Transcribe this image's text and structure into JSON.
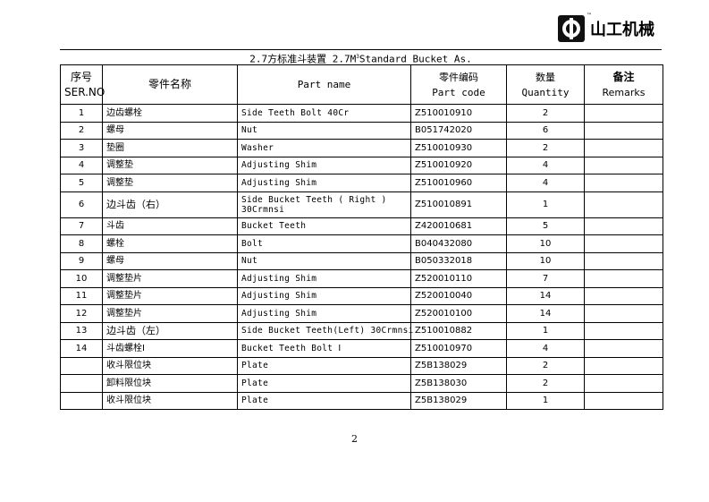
{
  "logo": {
    "brand": "山工机械",
    "tm": "™"
  },
  "title": {
    "prefix": "2.7方标准斗装置  2.7M",
    "sup": "3",
    "suffix": "Standard Bucket As."
  },
  "headers": {
    "ser_cn": "序号",
    "ser_en": "SER.NO",
    "name_cn": "零件名称",
    "part_name": "Part name",
    "code_cn": "零件编码",
    "code_en": "Part code",
    "qty_cn": "数量",
    "qty_en": "Quantity",
    "remarks_cn": "备注",
    "remarks_en": "Remarks"
  },
  "rows": [
    {
      "no": "1",
      "cn": "边齿螺栓",
      "en": "Side Teeth Bolt   40Cr",
      "code": "Z510010910",
      "qty": "2",
      "remarks": ""
    },
    {
      "no": "2",
      "cn": "螺母",
      "en": "Nut",
      "code": "B051742020",
      "qty": "6",
      "remarks": ""
    },
    {
      "no": "3",
      "cn": "垫圈",
      "en": "Washer",
      "code": "Z510010930",
      "qty": "2",
      "remarks": ""
    },
    {
      "no": "4",
      "cn": "调整垫",
      "en": "Adjusting Shim",
      "code": "Z510010920",
      "qty": "4",
      "remarks": ""
    },
    {
      "no": "5",
      "cn": "调整垫",
      "en": "Adjusting Shim",
      "code": "Z510010960",
      "qty": "4",
      "remarks": ""
    },
    {
      "no": "6",
      "cn": "边斗齿（右）",
      "en": "Side  Bucket  Teeth  ( Right ) 30Crmnsi",
      "code": "Z510010891",
      "qty": "1",
      "remarks": ""
    },
    {
      "no": "7",
      "cn": "斗齿",
      "en": "Bucket Teeth",
      "code": "Z420010681",
      "qty": "5",
      "remarks": ""
    },
    {
      "no": "8",
      "cn": "螺栓",
      "en": "Bolt",
      "code": "B040432080",
      "qty": "10",
      "remarks": ""
    },
    {
      "no": "9",
      "cn": "螺母",
      "en": "Nut",
      "code": "B050332018",
      "qty": "10",
      "remarks": ""
    },
    {
      "no": "10",
      "cn": "调整垫片",
      "en": "Adjusting Shim",
      "code": "Z520010110",
      "qty": "7",
      "remarks": ""
    },
    {
      "no": "11",
      "cn": "调整垫片",
      "en": "Adjusting Shim",
      "code": "Z520010040",
      "qty": "14",
      "remarks": ""
    },
    {
      "no": "12",
      "cn": "调整垫片",
      "en": "Adjusting Shim",
      "code": "Z520010100",
      "qty": "14",
      "remarks": ""
    },
    {
      "no": "13",
      "cn": "边斗齿（左）",
      "en": "Side Bucket Teeth(Left)   30Crmnsi",
      "code": "Z510010882",
      "qty": "1",
      "remarks": ""
    },
    {
      "no": "14",
      "cn": "斗齿螺栓Ⅰ",
      "en": "Bucket  Teeth  Bolt Ⅰ",
      "code": "Z510010970",
      "qty": "4",
      "remarks": ""
    },
    {
      "no": "",
      "cn": "收斗限位块",
      "en": "Plate",
      "code": "Z5B138029",
      "qty": "2",
      "remarks": ""
    },
    {
      "no": "",
      "cn": "卸料限位块",
      "en": "Plate",
      "code": "Z5B138030",
      "qty": "2",
      "remarks": ""
    },
    {
      "no": "",
      "cn": "收斗限位块",
      "en": "Plate",
      "code": "Z5B138029",
      "qty": "1",
      "remarks": ""
    }
  ],
  "page_number": "2"
}
